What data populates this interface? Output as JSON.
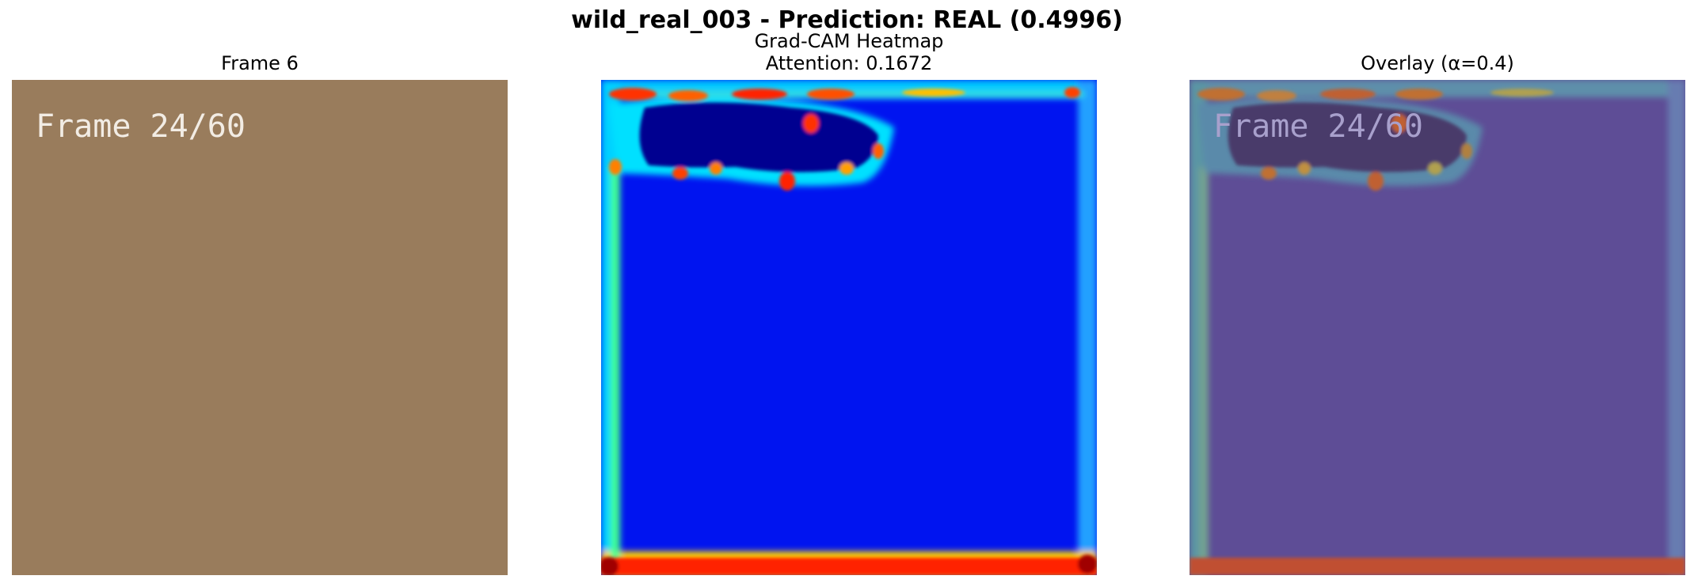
{
  "figure": {
    "title": "wild_real_003 - Prediction: REAL (0.4996)"
  },
  "panels": [
    {
      "title": "Frame 6",
      "image_text": "Frame 24/60"
    },
    {
      "title_line1": "Grad-CAM Heatmap",
      "title_line2": "Attention: 0.1672"
    },
    {
      "title": "Overlay (α=0.4)",
      "image_text": "Frame 24/60"
    }
  ],
  "colors": {
    "frame_bg": "#997c5c",
    "heat_low": "#0014f0",
    "overlay_bg": "#5e4d96"
  }
}
